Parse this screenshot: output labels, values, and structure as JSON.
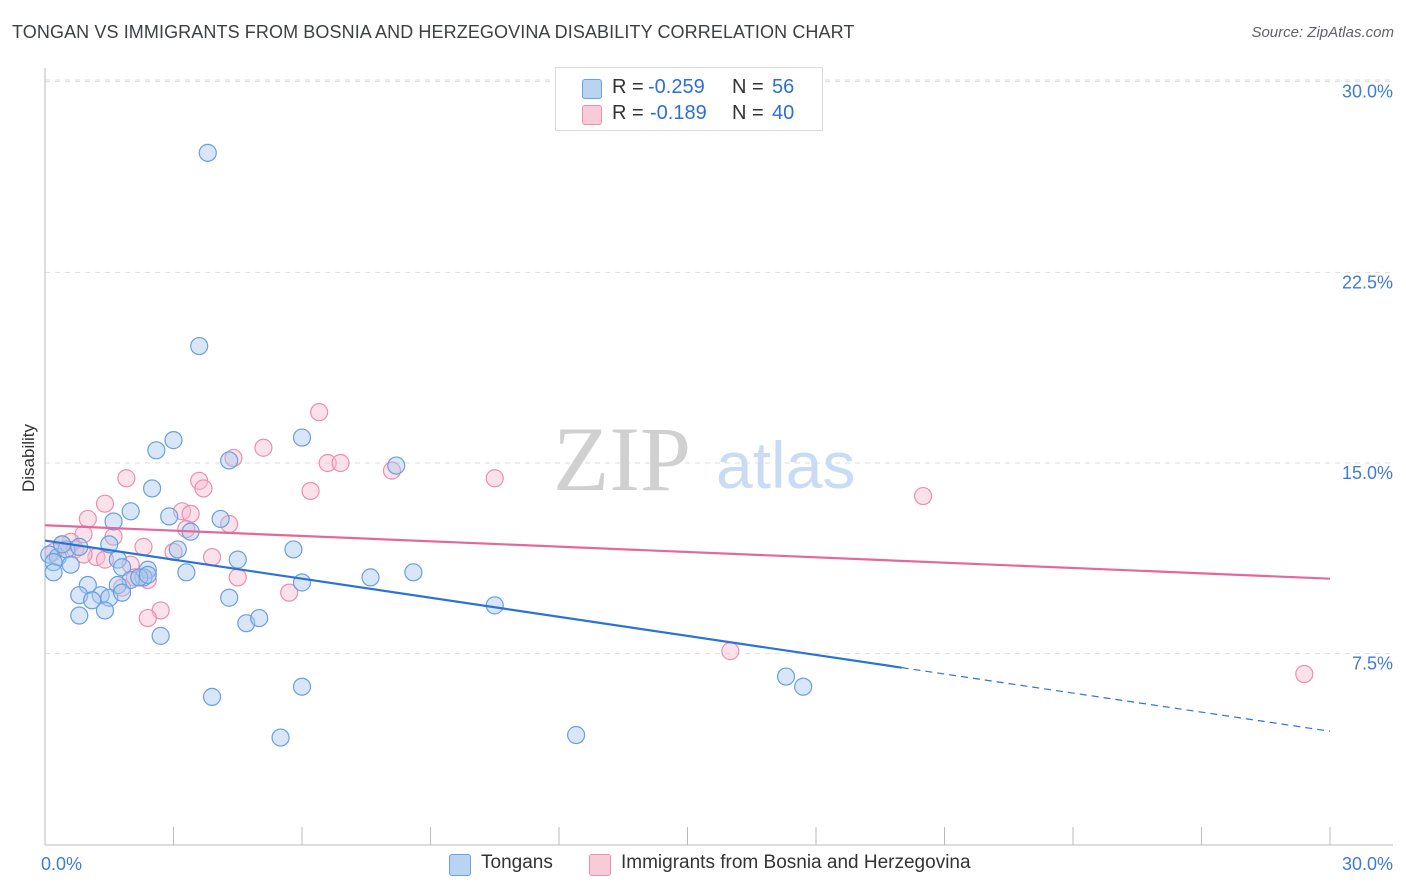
{
  "title": "TONGAN VS IMMIGRANTS FROM BOSNIA AND HERZEGOVINA DISABILITY CORRELATION CHART",
  "source": "Source: ZipAtlas.com",
  "watermark": {
    "zip": "ZIP",
    "atlas": "atlas"
  },
  "colors": {
    "blue_fill": "#a9c8f0",
    "blue_stroke": "#6a9fe0",
    "blue_line": "#2a72d8",
    "pink_fill": "#f6bfd0",
    "pink_stroke": "#eb8fae",
    "pink_line": "#e4689a",
    "axis_text": "#3f7bd6",
    "grid": "#dddddd"
  },
  "legend": {
    "rows": [
      {
        "r_label": "R =",
        "r_value": "-0.259",
        "n_label": "N =",
        "n_value": "56"
      },
      {
        "r_label": "R =",
        "r_value": "-0.189",
        "n_label": "N =",
        "n_value": "40"
      }
    ]
  },
  "bottom_legend": [
    "Tongans",
    "Immigrants from Bosnia and Herzegovina"
  ],
  "chart_data": {
    "type": "scatter",
    "title": "TONGAN VS IMMIGRANTS FROM BOSNIA AND HERZEGOVINA DISABILITY CORRELATION CHART",
    "xlabel": "",
    "ylabel": "Disability",
    "xlim": [
      0,
      30
    ],
    "ylim": [
      1,
      31
    ],
    "x_tick_labels": [
      {
        "value": 0,
        "label": "0.0%"
      },
      {
        "value": 30,
        "label": "30.0%"
      }
    ],
    "y_tick_labels": [
      {
        "value": 7.5,
        "label": "7.5%"
      },
      {
        "value": 15,
        "label": "15.0%"
      },
      {
        "value": 22.5,
        "label": "22.5%"
      },
      {
        "value": 30,
        "label": "30.0%"
      }
    ],
    "grid": true,
    "series": [
      {
        "name": "Tongans",
        "color": "blue",
        "points": [
          [
            3.8,
            27.2
          ],
          [
            3.6,
            19.6
          ],
          [
            3.0,
            15.9
          ],
          [
            2.6,
            15.5
          ],
          [
            4.3,
            15.1
          ],
          [
            6.0,
            16.0
          ],
          [
            8.2,
            14.9
          ],
          [
            2.5,
            14.0
          ],
          [
            2.0,
            13.1
          ],
          [
            1.6,
            12.7
          ],
          [
            4.1,
            12.8
          ],
          [
            3.4,
            12.3
          ],
          [
            3.1,
            11.6
          ],
          [
            0.1,
            11.4
          ],
          [
            0.3,
            11.3
          ],
          [
            0.5,
            11.6
          ],
          [
            0.2,
            11.1
          ],
          [
            0.6,
            11.0
          ],
          [
            0.8,
            11.7
          ],
          [
            0.2,
            10.7
          ],
          [
            1.5,
            11.8
          ],
          [
            1.7,
            11.2
          ],
          [
            1.8,
            10.9
          ],
          [
            2.4,
            10.8
          ],
          [
            2.3,
            10.5
          ],
          [
            2.0,
            10.4
          ],
          [
            1.7,
            10.2
          ],
          [
            1.0,
            10.2
          ],
          [
            1.3,
            9.8
          ],
          [
            0.8,
            9.8
          ],
          [
            1.1,
            9.6
          ],
          [
            1.5,
            9.7
          ],
          [
            2.2,
            10.5
          ],
          [
            3.3,
            10.7
          ],
          [
            4.5,
            11.2
          ],
          [
            5.8,
            11.6
          ],
          [
            6.0,
            10.3
          ],
          [
            7.6,
            10.5
          ],
          [
            8.6,
            10.7
          ],
          [
            10.5,
            9.4
          ],
          [
            1.4,
            9.2
          ],
          [
            0.8,
            9.0
          ],
          [
            2.7,
            8.2
          ],
          [
            4.7,
            8.7
          ],
          [
            5.0,
            8.9
          ],
          [
            4.3,
            9.7
          ],
          [
            3.9,
            5.8
          ],
          [
            5.5,
            4.2
          ],
          [
            6.0,
            6.2
          ],
          [
            12.4,
            4.3
          ],
          [
            17.3,
            6.6
          ],
          [
            17.7,
            6.2
          ],
          [
            0.4,
            11.8
          ],
          [
            1.8,
            9.9
          ],
          [
            2.9,
            12.9
          ],
          [
            2.4,
            10.6
          ]
        ],
        "trend": {
          "x_start": 0,
          "y_start": 11.95,
          "x_end": 20,
          "y_end": 6.95,
          "dashed_to_x": 30,
          "dashed_to_y": 4.45
        }
      },
      {
        "name": "Immigrants from Bosnia and Herzegovina",
        "color": "pink",
        "points": [
          [
            6.4,
            17.0
          ],
          [
            5.1,
            15.6
          ],
          [
            4.4,
            15.2
          ],
          [
            6.6,
            15.0
          ],
          [
            6.9,
            15.0
          ],
          [
            8.1,
            14.7
          ],
          [
            10.5,
            14.4
          ],
          [
            1.9,
            14.4
          ],
          [
            3.6,
            14.3
          ],
          [
            3.7,
            14.0
          ],
          [
            6.2,
            13.9
          ],
          [
            20.5,
            13.7
          ],
          [
            1.4,
            13.4
          ],
          [
            3.2,
            13.1
          ],
          [
            3.4,
            13.0
          ],
          [
            1.0,
            12.8
          ],
          [
            4.3,
            12.6
          ],
          [
            3.3,
            12.4
          ],
          [
            0.9,
            12.2
          ],
          [
            1.6,
            12.1
          ],
          [
            0.6,
            11.9
          ],
          [
            0.4,
            11.8
          ],
          [
            0.7,
            11.6
          ],
          [
            0.2,
            11.5
          ],
          [
            2.3,
            11.7
          ],
          [
            3.0,
            11.5
          ],
          [
            1.2,
            11.3
          ],
          [
            1.4,
            11.2
          ],
          [
            2.0,
            11.0
          ],
          [
            3.9,
            11.3
          ],
          [
            4.5,
            10.5
          ],
          [
            2.1,
            10.5
          ],
          [
            1.8,
            10.1
          ],
          [
            2.4,
            10.4
          ],
          [
            5.7,
            9.9
          ],
          [
            2.7,
            9.2
          ],
          [
            2.4,
            8.9
          ],
          [
            16.0,
            7.6
          ],
          [
            29.4,
            6.7
          ],
          [
            0.9,
            11.4
          ]
        ],
        "trend": {
          "x_start": 0,
          "y_start": 12.55,
          "x_end": 30,
          "y_end": 10.45
        }
      }
    ]
  }
}
